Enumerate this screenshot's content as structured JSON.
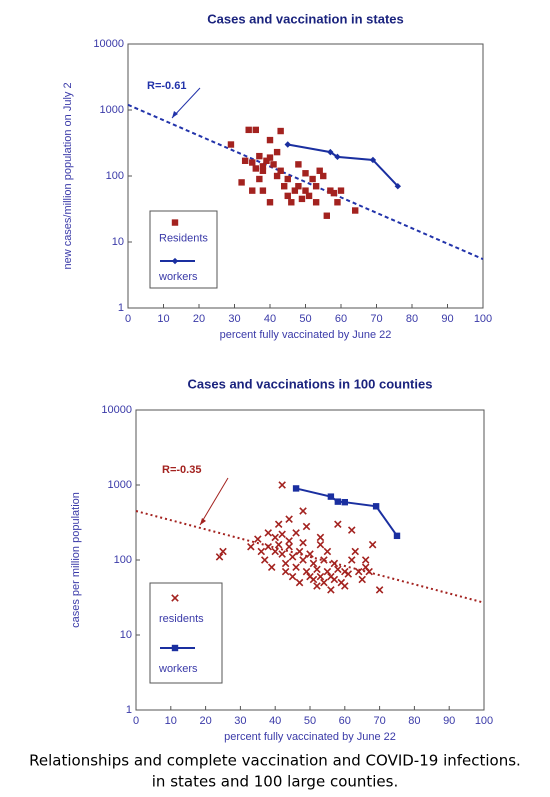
{
  "chart_data": [
    {
      "type": "scatter",
      "title": "Cases and vaccination in states",
      "x_label": "percent fully vaccinated by June 22",
      "y_label": "new cases/million population on July 2",
      "xlim": [
        0,
        100
      ],
      "xticks": [
        0,
        10,
        20,
        30,
        40,
        50,
        60,
        70,
        80,
        90,
        100
      ],
      "ylim": [
        1,
        10000
      ],
      "yticks": [
        1,
        10,
        100,
        1000,
        10000
      ],
      "log_y": true,
      "grid": false,
      "annotation": "R=-0.61",
      "trend": {
        "x": [
          0,
          100
        ],
        "values": [
          1200,
          5.5
        ],
        "color": "#2233aa",
        "dash": "4 3"
      },
      "series": [
        {
          "name": "Residents",
          "color": "#a3221f",
          "marker": "square",
          "line": false,
          "x": [
            29,
            32,
            33,
            34,
            35,
            36,
            36,
            37,
            37,
            38,
            38,
            39,
            40,
            40,
            41,
            42,
            42,
            43,
            43,
            44,
            45,
            45,
            46,
            47,
            48,
            48,
            49,
            50,
            50,
            51,
            52,
            53,
            53,
            54,
            55,
            56,
            57,
            58,
            59,
            60,
            64,
            40,
            35,
            38
          ],
          "values": [
            300,
            80,
            170,
            500,
            160,
            130,
            500,
            200,
            90,
            120,
            60,
            170,
            350,
            40,
            150,
            100,
            230,
            480,
            120,
            70,
            90,
            50,
            40,
            60,
            150,
            70,
            45,
            60,
            110,
            50,
            90,
            70,
            40,
            120,
            100,
            25,
            60,
            55,
            40,
            60,
            30,
            190,
            60,
            140
          ]
        },
        {
          "name": "workers",
          "color": "#1a2fa0",
          "marker": "diamond",
          "line": true,
          "x": [
            45,
            57,
            59,
            69,
            76
          ],
          "values": [
            300,
            230,
            195,
            175,
            70
          ]
        }
      ]
    },
    {
      "type": "scatter",
      "title": "Cases and vaccinations in 100 counties",
      "x_label": "percent fully vaccinated by June 22",
      "y_label": "cases per million population",
      "xlim": [
        0,
        100
      ],
      "xticks": [
        0,
        10,
        20,
        30,
        40,
        50,
        60,
        70,
        80,
        90,
        100
      ],
      "ylim": [
        1,
        10000
      ],
      "yticks": [
        1,
        10,
        100,
        1000,
        10000
      ],
      "log_y": true,
      "grid": false,
      "annotation": "R=-0.35",
      "trend": {
        "x": [
          0,
          100
        ],
        "values": [
          450,
          27
        ],
        "color": "#a3221f",
        "dash": "2 3"
      },
      "series": [
        {
          "name": "residents",
          "color": "#a3221f",
          "marker": "x",
          "line": false,
          "x": [
            24,
            25,
            33,
            35,
            36,
            37,
            38,
            38,
            39,
            40,
            40,
            41,
            41,
            42,
            42,
            42,
            43,
            43,
            44,
            44,
            45,
            45,
            46,
            46,
            47,
            47,
            48,
            48,
            49,
            49,
            50,
            50,
            51,
            51,
            52,
            52,
            53,
            53,
            54,
            54,
            55,
            55,
            56,
            56,
            57,
            57,
            58,
            58,
            59,
            60,
            60,
            61,
            62,
            62,
            63,
            64,
            65,
            66,
            66,
            67,
            68,
            70,
            48,
            44,
            53
          ],
          "values": [
            110,
            130,
            150,
            190,
            130,
            100,
            230,
            150,
            80,
            130,
            200,
            300,
            160,
            1000,
            220,
            120,
            90,
            70,
            180,
            150,
            110,
            60,
            230,
            80,
            130,
            50,
            170,
            100,
            280,
            70,
            60,
            120,
            90,
            55,
            75,
            45,
            200,
            60,
            100,
            50,
            70,
            130,
            40,
            60,
            90,
            55,
            300,
            75,
            50,
            70,
            45,
            65,
            250,
            100,
            130,
            70,
            55,
            100,
            80,
            70,
            160,
            40,
            450,
            350,
            160
          ]
        },
        {
          "name": "workers",
          "color": "#1a2fa0",
          "marker": "square",
          "line": true,
          "x": [
            46,
            56,
            58,
            60,
            69,
            75
          ],
          "values": [
            900,
            700,
            600,
            590,
            520,
            210
          ]
        }
      ]
    }
  ],
  "caption": [
    "Relationships and complete vaccination and COVID-19 infections.",
    "in states and 100 large counties."
  ]
}
